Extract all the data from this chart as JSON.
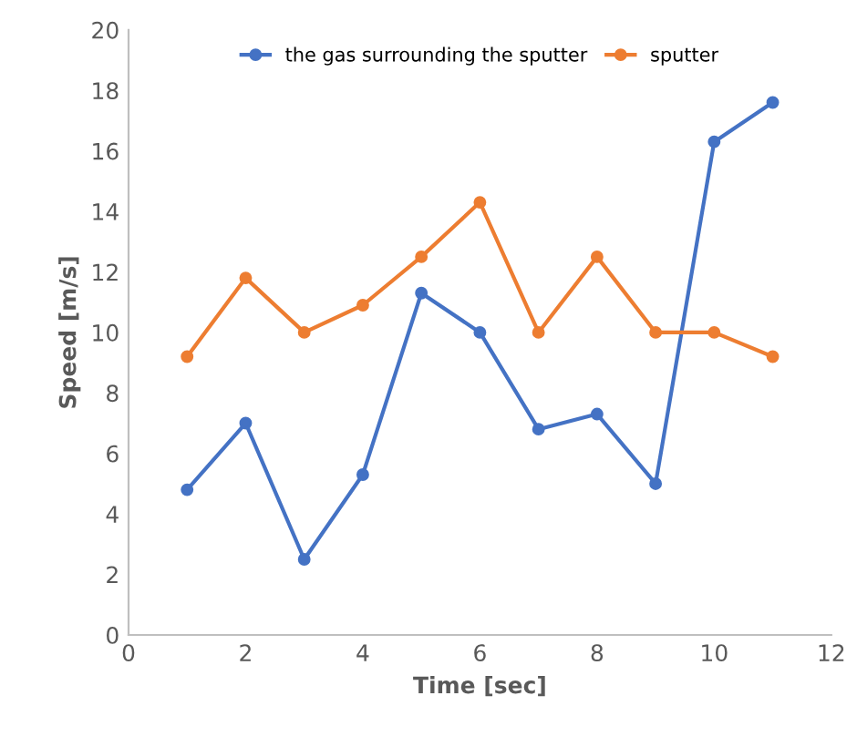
{
  "chart_data": {
    "type": "line",
    "xlabel": "Time [sec]",
    "ylabel": "Speed [m/s]",
    "x": [
      1,
      2,
      3,
      4,
      5,
      6,
      7,
      8,
      9,
      10,
      11
    ],
    "series": [
      {
        "name": "the gas surrounding the sputter",
        "color": "#4472c4",
        "values": [
          4.8,
          7.0,
          2.5,
          5.3,
          11.3,
          10.0,
          6.8,
          7.3,
          5.0,
          16.3,
          17.6
        ]
      },
      {
        "name": "sputter",
        "color": "#ed7d31",
        "values": [
          9.2,
          11.8,
          10.0,
          10.9,
          12.5,
          14.3,
          10.0,
          12.5,
          10.0,
          10.0,
          9.2
        ]
      }
    ],
    "xlim": [
      0,
      12
    ],
    "xticks": [
      0,
      2,
      4,
      6,
      8,
      10,
      12
    ],
    "ylim": [
      0,
      20
    ],
    "yticks": [
      0,
      2,
      4,
      6,
      8,
      10,
      12,
      14,
      16,
      18,
      20
    ],
    "grid": false,
    "legend": "top",
    "marker": "circle",
    "line_style": "solid"
  }
}
